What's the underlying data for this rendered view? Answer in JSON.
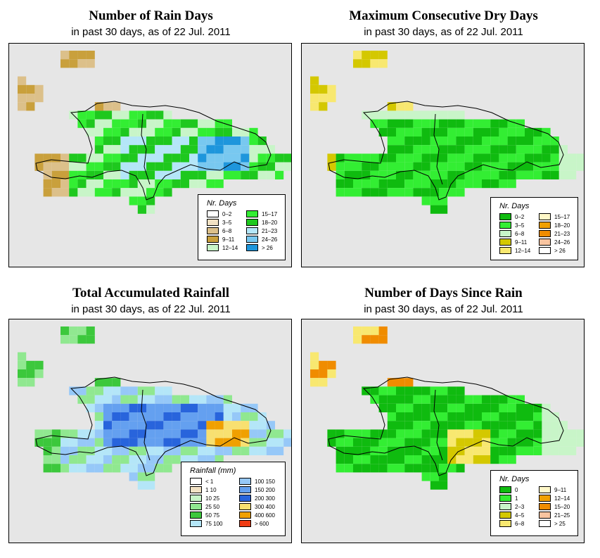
{
  "panels": [
    {
      "title": "Number of Rain Days",
      "subtitle": "in past 30 days, as of  22 Jul. 2011",
      "legend": {
        "title": "Nr. Days",
        "items": [
          {
            "label": "0–2",
            "color": "#ffffff"
          },
          {
            "label": "3–5",
            "color": "#f2e2c4"
          },
          {
            "label": "6–8",
            "color": "#dcc08a"
          },
          {
            "label": "9–11",
            "color": "#c9a03c"
          },
          {
            "label": "12–14",
            "color": "#c8f5c8"
          },
          {
            "label": "15–17",
            "color": "#33ee33"
          },
          {
            "label": "18–20",
            "color": "#1ec81e"
          },
          {
            "label": "21–23",
            "color": "#b4e6f8"
          },
          {
            "label": "24–26",
            "color": "#78c8f0"
          },
          {
            "label": "> 26",
            "color": "#1e96dc"
          }
        ]
      }
    },
    {
      "title": "Maximum Consecutive Dry Days",
      "subtitle": "in past 30 days, as of  22 Jul. 2011",
      "legend": {
        "title": "Nr. Days",
        "items": [
          {
            "label": "0–2",
            "color": "#0fbb0f"
          },
          {
            "label": "3–5",
            "color": "#33ee33"
          },
          {
            "label": "6–8",
            "color": "#c8f5c8"
          },
          {
            "label": "9–11",
            "color": "#d4c800"
          },
          {
            "label": "12–14",
            "color": "#f8e870"
          },
          {
            "label": "15–17",
            "color": "#fff8c8"
          },
          {
            "label": "18–20",
            "color": "#f0a000"
          },
          {
            "label": "21–23",
            "color": "#f08c00"
          },
          {
            "label": "24–26",
            "color": "#f8c4a0"
          },
          {
            "label": "> 26",
            "color": "#ffffff"
          }
        ]
      }
    },
    {
      "title": "Total Accumulated Rainfall",
      "subtitle": "in past 30 days, as of  22 Jul. 2011",
      "legend": {
        "title": "Rainfall (mm)",
        "items": [
          {
            "label": "< 1",
            "color": "#ffffff"
          },
          {
            "label": "1   10",
            "color": "#f2e2c4"
          },
          {
            "label": "10   25",
            "color": "#c8f5c8"
          },
          {
            "label": "25   50",
            "color": "#90e890"
          },
          {
            "label": "50   75",
            "color": "#3cc83c"
          },
          {
            "label": "75  100",
            "color": "#b4e6f8"
          },
          {
            "label": "100  150",
            "color": "#96c8f8"
          },
          {
            "label": "150  200",
            "color": "#64a0f0"
          },
          {
            "label": "200  300",
            "color": "#2864dc"
          },
          {
            "label": "300  400",
            "color": "#f8e070"
          },
          {
            "label": "400  600",
            "color": "#f0a000"
          },
          {
            "label": "> 600",
            "color": "#f03c14"
          }
        ]
      }
    },
    {
      "title": "Number of Days Since Rain",
      "subtitle": "in past 30 days, as of  22 Jul. 2011",
      "legend": {
        "title": "Nr. Days",
        "items": [
          {
            "label": "0",
            "color": "#0fbb0f"
          },
          {
            "label": "1",
            "color": "#33ee33"
          },
          {
            "label": "2–3",
            "color": "#c8f5c8"
          },
          {
            "label": "4–5",
            "color": "#d4c800"
          },
          {
            "label": "6–8",
            "color": "#f8e870"
          },
          {
            "label": "9–11",
            "color": "#fff8c8"
          },
          {
            "label": "12–14",
            "color": "#f0a000"
          },
          {
            "label": "15–20",
            "color": "#f08c00"
          },
          {
            "label": "21–25",
            "color": "#f8c4a0"
          },
          {
            "label": "> 25",
            "color": "#ffffff"
          }
        ]
      }
    }
  ]
}
